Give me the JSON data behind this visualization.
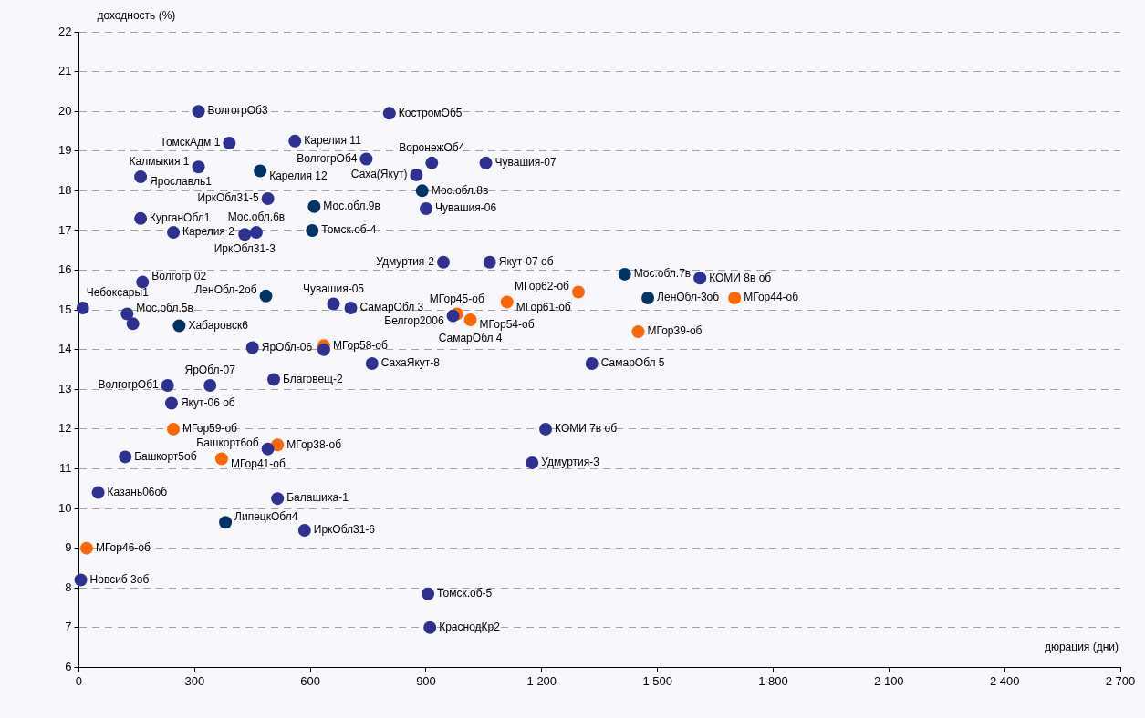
{
  "chart_data": {
    "type": "scatter",
    "xlabel": "дюрация (дни)",
    "ylabel": "доходность (%)",
    "xlim": [
      0,
      2700
    ],
    "ylim": [
      6,
      22
    ],
    "xticks": [
      0,
      300,
      600,
      900,
      {
        "value": 1200,
        "label": "1 200"
      },
      {
        "value": 1500,
        "label": "1 500"
      },
      {
        "value": 1800,
        "label": "1 800"
      },
      {
        "value": 2100,
        "label": "2 100"
      },
      {
        "value": 2400,
        "label": "2 400"
      },
      {
        "value": 2700,
        "label": "2 700"
      }
    ],
    "yticks": [
      6,
      7,
      8,
      9,
      10,
      11,
      12,
      13,
      14,
      15,
      16,
      17,
      18,
      19,
      20,
      21,
      22
    ],
    "grid": "y",
    "legend": false,
    "marker": "circle",
    "series": [
      {
        "color": "#2e3192",
        "x": [
          310,
          390,
          560,
          805,
          745,
          915,
          1055,
          160,
          310,
          875,
          490,
          900,
          160,
          245,
          430,
          460,
          945,
          1065,
          1610,
          165,
          10,
          125,
          140,
          660,
          705,
          970,
          450,
          635,
          760,
          1330,
          230,
          340,
          505,
          240,
          1210,
          1175,
          120,
          490,
          50,
          515,
          585,
          5,
          905,
          910
        ],
        "values": [
          20,
          19.2,
          19.25,
          19.95,
          18.8,
          18.7,
          18.7,
          18.35,
          18.6,
          18.4,
          17.8,
          17.55,
          17.3,
          16.95,
          16.9,
          16.95,
          16.2,
          16.2,
          15.8,
          15.7,
          15.05,
          14.9,
          14.65,
          15.15,
          15.05,
          14.85,
          14.05,
          14,
          13.65,
          13.65,
          13.1,
          13.1,
          13.25,
          12.65,
          12,
          11.15,
          11.3,
          11.5,
          10.4,
          10.25,
          9.45,
          8.2,
          7.85,
          7
        ]
      },
      {
        "color": "#003366",
        "x": [
          470,
          890,
          610,
          605,
          485,
          260,
          1415,
          1475,
          380
        ],
        "values": [
          18.5,
          18,
          17.6,
          17,
          15.35,
          14.6,
          15.9,
          15.3,
          9.65
        ]
      },
      {
        "color": "#ff6600",
        "x": [
          635,
          980,
          1015,
          1110,
          1295,
          1450,
          1700,
          245,
          370,
          515,
          20
        ],
        "values": [
          14.1,
          14.9,
          14.75,
          15.2,
          15.45,
          14.45,
          15.3,
          12,
          11.25,
          11.6,
          9
        ]
      }
    ],
    "annotations": [
      {
        "text": "ВолгогрОб3",
        "x": 310,
        "y": 20
      },
      {
        "text": "ТомскАдм 1",
        "x": 390,
        "y": 19.2
      },
      {
        "text": "Карелия 11",
        "x": 560,
        "y": 19.25
      },
      {
        "text": "КостромОб5",
        "x": 805,
        "y": 19.95
      },
      {
        "text": "ВолгогрОб4",
        "x": 745,
        "y": 18.8
      },
      {
        "text": "ВоронежОб4",
        "x": 915,
        "y": 18.7
      },
      {
        "text": "Чувашия-07",
        "x": 1055,
        "y": 18.7
      },
      {
        "text": "Ярославль1",
        "x": 160,
        "y": 18.35
      },
      {
        "text": "Калмыкия 1",
        "x": 310,
        "y": 18.6
      },
      {
        "text": "Карелия 12",
        "x": 470,
        "y": 18.5
      },
      {
        "text": "Саха(Якут)",
        "x": 875,
        "y": 18.4
      },
      {
        "text": "ИркОбл31-5",
        "x": 490,
        "y": 17.8
      },
      {
        "text": "Мос.обл.8в",
        "x": 890,
        "y": 18
      },
      {
        "text": "Мос.обл.9в",
        "x": 610,
        "y": 17.6
      },
      {
        "text": "Чувашия-06",
        "x": 900,
        "y": 17.55
      },
      {
        "text": "ИркОбл31-3",
        "x": 430,
        "y": 16.9
      },
      {
        "text": "Мос.обл.6в",
        "x": 460,
        "y": 16.95
      },
      {
        "text": "КурганОбл1",
        "x": 160,
        "y": 17.3
      },
      {
        "text": "Карелия 2",
        "x": 245,
        "y": 16.95
      },
      {
        "text": "Томск.об-4",
        "x": 605,
        "y": 17
      },
      {
        "text": "Удмуртия-2",
        "x": 945,
        "y": 16.2
      },
      {
        "text": "Якут-07 об",
        "x": 1065,
        "y": 16.2
      },
      {
        "text": "Мос.обл.7в",
        "x": 1415,
        "y": 15.9
      },
      {
        "text": "КОМИ 8в об",
        "x": 1610,
        "y": 15.8
      },
      {
        "text": "Волгогр 02",
        "x": 165,
        "y": 15.7
      },
      {
        "text": "ЛенОбл-2об",
        "x": 485,
        "y": 15.35
      },
      {
        "text": "МГор61-об",
        "x": 1110,
        "y": 15.2
      },
      {
        "text": "МГор62-об",
        "x": 1295,
        "y": 15.45
      },
      {
        "text": "Мос.обл.5в",
        "x": 125,
        "y": 14.9
      },
      {
        "text": "Чувашия-05",
        "x": 660,
        "y": 15.15
      },
      {
        "text": "ЛенОбл-3об",
        "x": 1475,
        "y": 15.3
      },
      {
        "text": "МГор44-об",
        "x": 1700,
        "y": 15.3
      },
      {
        "text": "МГор45-об",
        "x": 980,
        "y": 14.9
      },
      {
        "text": "Чебоксары1",
        "x": 10,
        "y": 15.05
      },
      {
        "text": "СамарОбл 3",
        "x": 705,
        "y": 15.05
      },
      {
        "text": "МГор54-об",
        "x": 1015,
        "y": 14.75
      },
      {
        "text": "МГор39-об",
        "x": 1450,
        "y": 14.45
      },
      {
        "text": "Хабаровск6",
        "x": 260,
        "y": 14.6
      },
      {
        "text": "Белгор2006",
        "x": 970,
        "y": 14.85
      },
      {
        "text": "СамарОбл 4",
        "x": 1015,
        "y": 14.75
      },
      {
        "text": "ЯрОбл-06",
        "x": 450,
        "y": 14.05
      },
      {
        "text": "МГор58-об",
        "x": 635,
        "y": 14.1
      },
      {
        "text": "СахаЯкут-8",
        "x": 760,
        "y": 13.65
      },
      {
        "text": "Благовещ-2",
        "x": 505,
        "y": 13.25
      },
      {
        "text": "СамарОбл 5",
        "x": 1330,
        "y": 13.65
      },
      {
        "text": "ВолгогрОб1",
        "x": 230,
        "y": 13.1
      },
      {
        "text": "ЯрОбл-07",
        "x": 340,
        "y": 13.1
      },
      {
        "text": "Якут-06 об",
        "x": 240,
        "y": 12.65
      },
      {
        "text": "КОМИ 7в об",
        "x": 1210,
        "y": 12
      },
      {
        "text": "МГор59-об",
        "x": 245,
        "y": 12
      },
      {
        "text": "Удмуртия-3",
        "x": 1175,
        "y": 11.15
      },
      {
        "text": "Башкорт5об",
        "x": 120,
        "y": 11.3
      },
      {
        "text": "МГор38-об",
        "x": 515,
        "y": 11.6
      },
      {
        "text": "Башкорт6об",
        "x": 490,
        "y": 11.5
      },
      {
        "text": "МГор41-об",
        "x": 370,
        "y": 11.25
      },
      {
        "text": "Казань06об",
        "x": 50,
        "y": 10.4
      },
      {
        "text": "Балашиха-1",
        "x": 515,
        "y": 10.25
      },
      {
        "text": "ЛипецкОбл4",
        "x": 380,
        "y": 9.65
      },
      {
        "text": "ИркОбл31-6",
        "x": 585,
        "y": 9.45
      },
      {
        "text": "МГор46-об",
        "x": 20,
        "y": 9
      },
      {
        "text": "Новсиб 3об",
        "x": 5,
        "y": 8.2
      },
      {
        "text": "Томск.об-5",
        "x": 905,
        "y": 7.85
      },
      {
        "text": "КраснодКр2",
        "x": 910,
        "y": 7
      }
    ]
  }
}
